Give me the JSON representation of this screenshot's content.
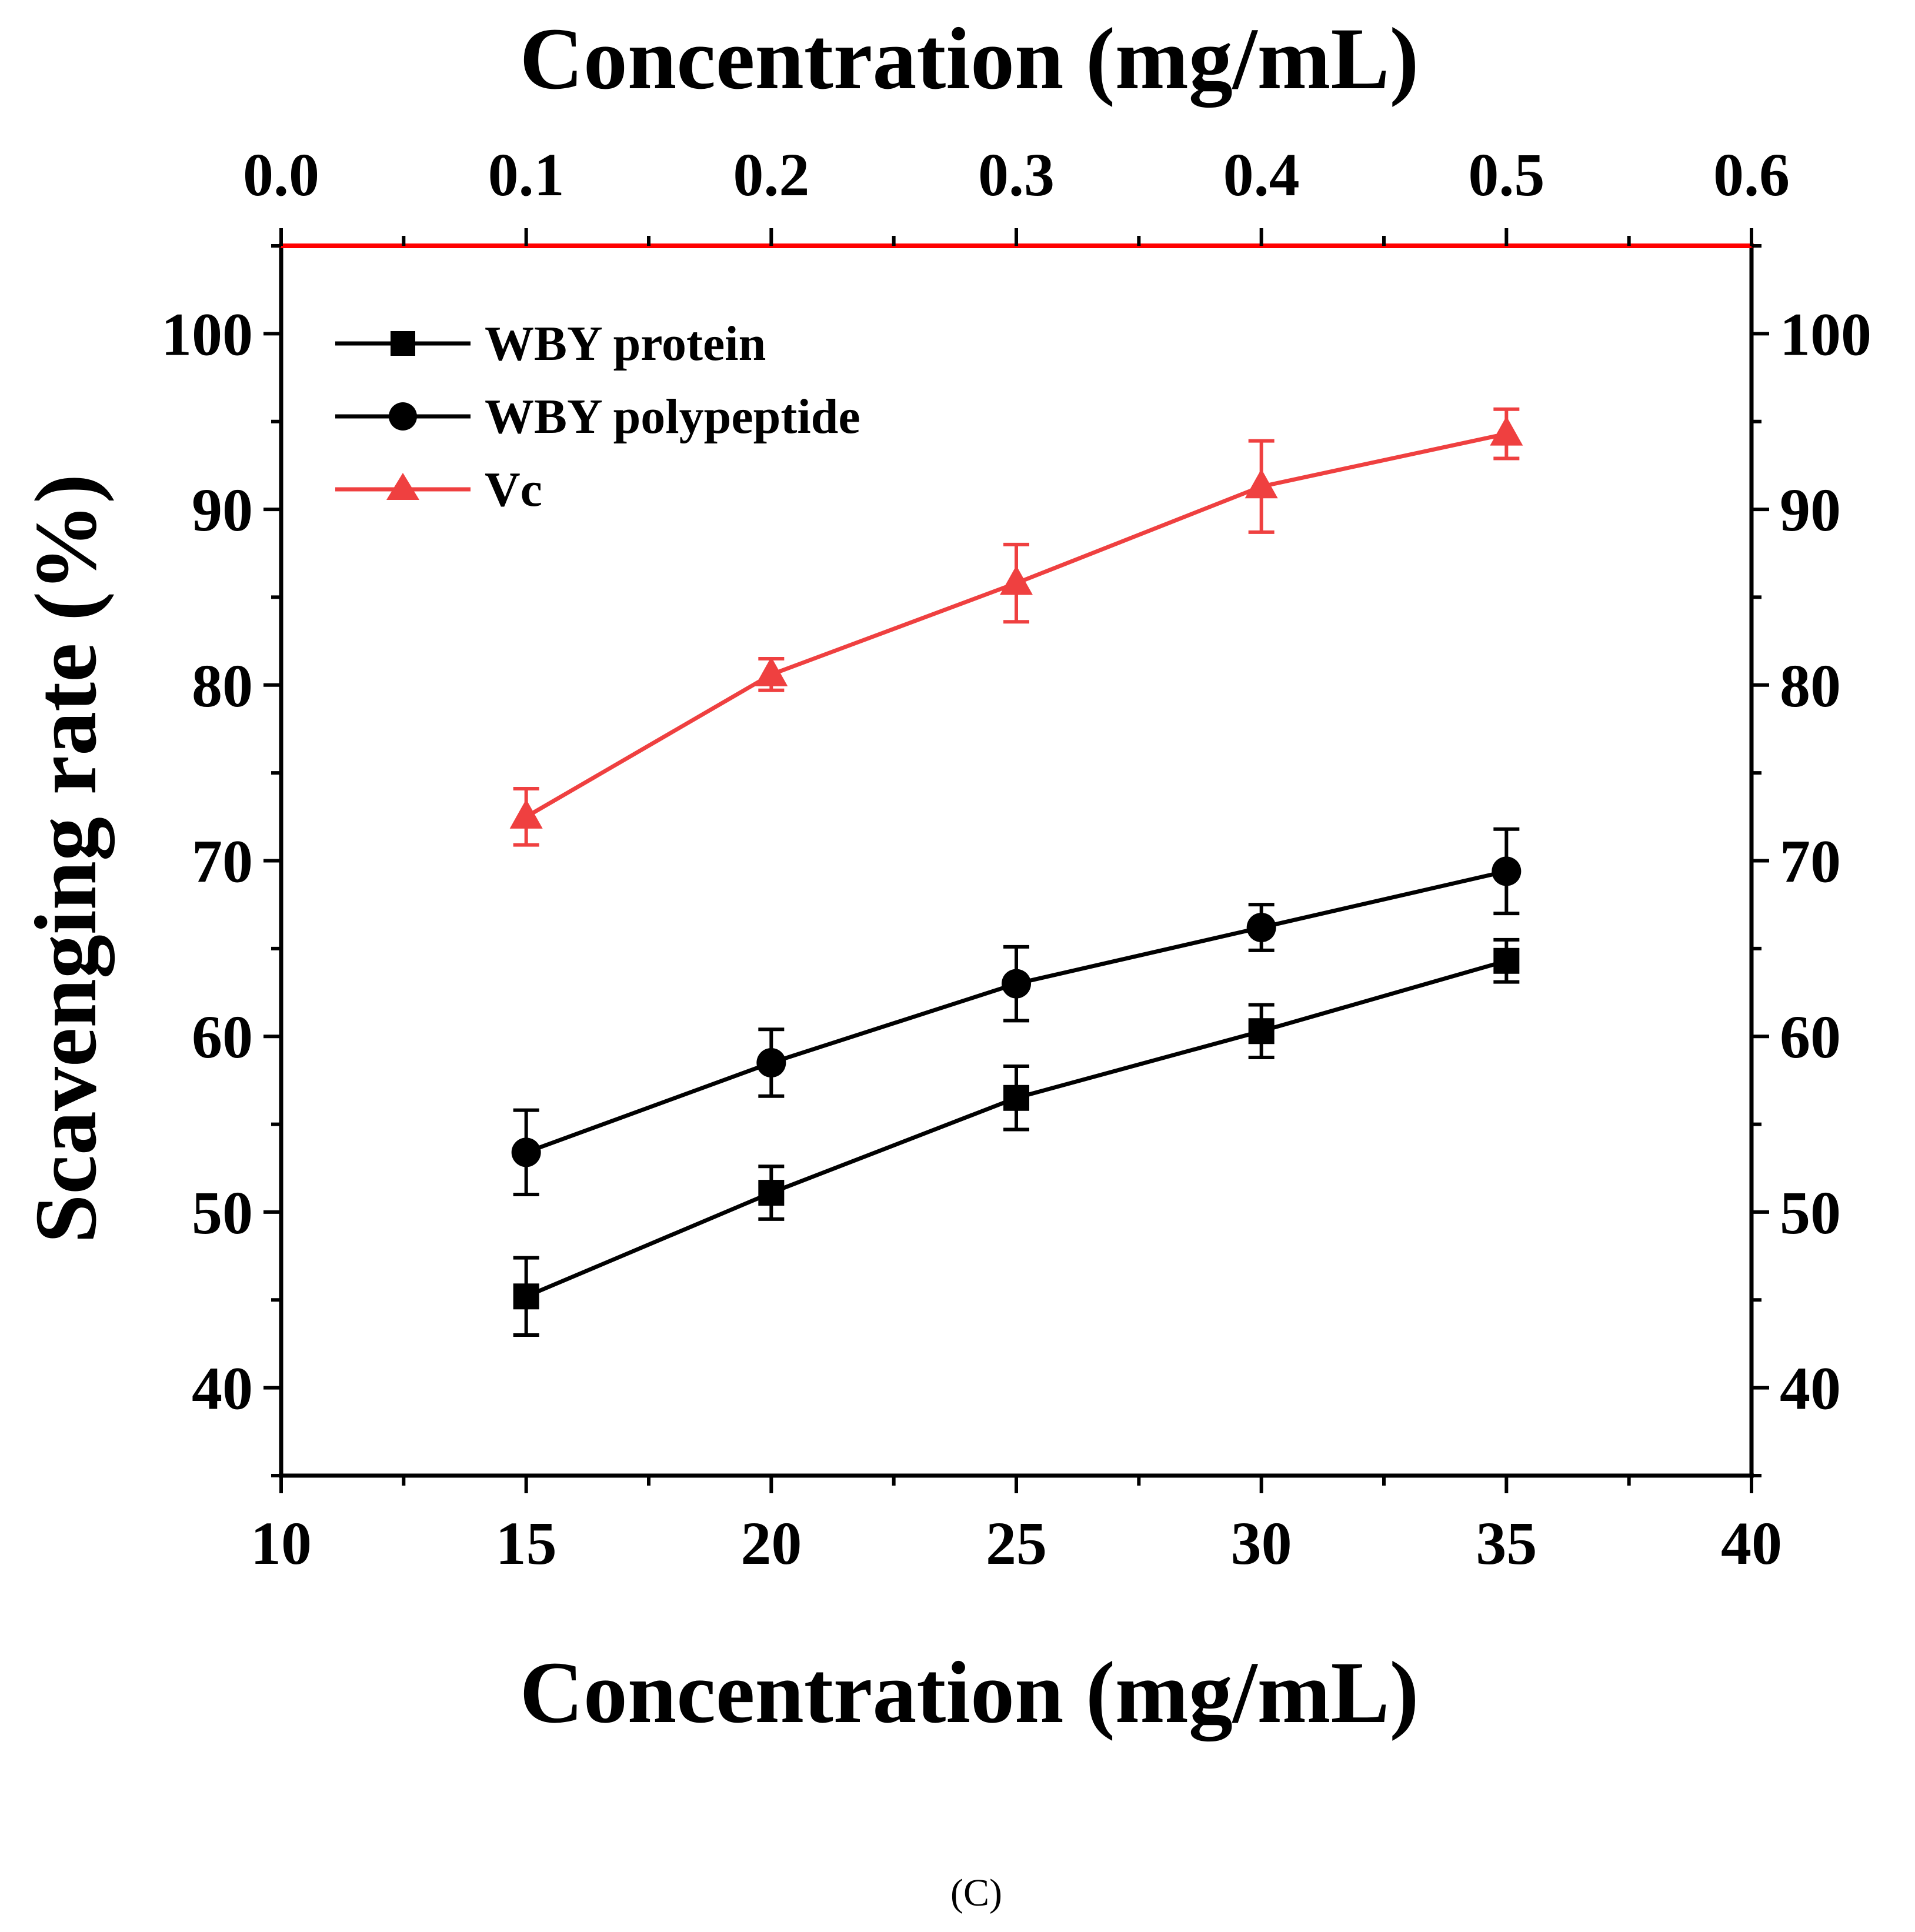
{
  "chart_data": {
    "type": "line",
    "xlabel": "Concentration (mg/mL)",
    "xlabel_top": "Concentration (mg/mL)",
    "ylabel": "Scavenging rate (%)",
    "panel_label": "(C)",
    "xlim": [
      10,
      40
    ],
    "xticks": [
      "10",
      "15",
      "20",
      "25",
      "30",
      "35",
      "40"
    ],
    "xlim_top": [
      0.0,
      0.6
    ],
    "xticks_top": [
      "0.0",
      "0.1",
      "0.2",
      "0.3",
      "0.4",
      "0.5",
      "0.6"
    ],
    "ylim": [
      35,
      105
    ],
    "yticks": [
      "40",
      "50",
      "60",
      "70",
      "80",
      "90",
      "100"
    ],
    "legend_position": "top-left",
    "grid": false,
    "series": [
      {
        "name": "WBY protein",
        "axis": "bottom",
        "marker": "square",
        "color": "#000000",
        "x": [
          15,
          20,
          25,
          30,
          35
        ],
        "y": [
          45.2,
          51.1,
          56.5,
          60.3,
          64.3
        ],
        "error": [
          2.2,
          1.5,
          1.8,
          1.5,
          1.2
        ]
      },
      {
        "name": "WBY polypeptide",
        "axis": "bottom",
        "marker": "circle",
        "color": "#000000",
        "x": [
          15,
          20,
          25,
          30,
          35
        ],
        "y": [
          53.4,
          58.5,
          63.0,
          66.2,
          69.4
        ],
        "error": [
          2.4,
          1.9,
          2.1,
          1.3,
          2.4
        ]
      },
      {
        "name": "Vc",
        "axis": "top",
        "marker": "triangle",
        "color": "#ef4040",
        "x": [
          0.1,
          0.2,
          0.3,
          0.4,
          0.5
        ],
        "y": [
          72.5,
          80.6,
          85.8,
          91.3,
          94.3
        ],
        "error": [
          1.6,
          0.9,
          2.2,
          2.6,
          1.4
        ]
      }
    ]
  }
}
